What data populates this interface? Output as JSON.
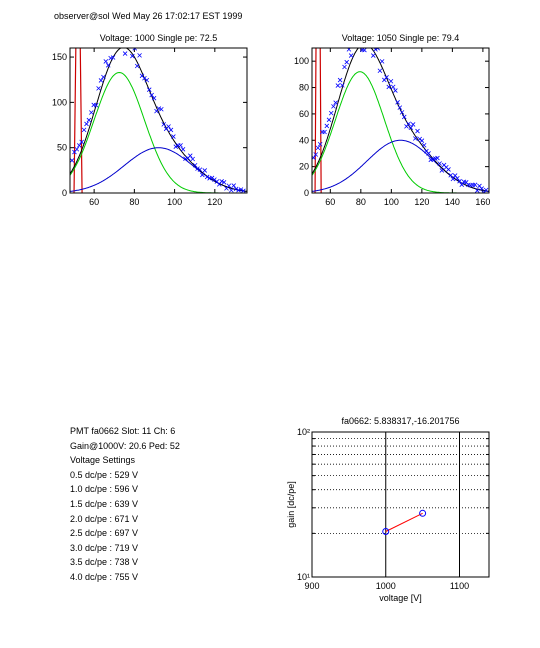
{
  "header": "observer@sol Wed May 26 17:02:17 EST 1999",
  "info_lines": [
    "PMT fa0662 Slot: 11 Ch: 6",
    "Gain@1000V: 20.6 Ped: 52",
    "Voltage Settings",
    "0.5 dc/pe : 529 V",
    "1.0 dc/pe : 596 V",
    "1.5 dc/pe : 639 V",
    "2.0 dc/pe : 671 V",
    "2.5 dc/pe : 697 V",
    "3.0 dc/pe : 719 V",
    "3.5 dc/pe : 738 V",
    "4.0 dc/pe : 755 V"
  ],
  "colors": {
    "data": "#0000ff",
    "total_fit": "#000000",
    "first_pe": "#00cc00",
    "second_pe": "#0000cc",
    "pedestal": "#cc0000",
    "gain_line": "#ff0000"
  },
  "chart_data": [
    {
      "type": "scatter",
      "title": "Voltage: 1000 Single pe: 72.5",
      "xlim": [
        48,
        136
      ],
      "ylim": [
        0,
        160
      ],
      "xticks": [
        60,
        80,
        100,
        120
      ],
      "yticks": [
        0,
        50,
        100,
        150
      ],
      "pedestal": {
        "x": 52,
        "peak": 250
      },
      "first_pe": {
        "mean": 72.5,
        "sigma": 12.5,
        "amp": 133
      },
      "second_pe": {
        "mean": 92,
        "sigma": 17,
        "amp": 50
      },
      "data": {
        "x_start": 49,
        "x_end": 135,
        "step": 1.2
      }
    },
    {
      "type": "scatter",
      "title": "Voltage: 1050 Single pe: 79.4",
      "xlim": [
        48,
        164
      ],
      "ylim": [
        0,
        110
      ],
      "xticks": [
        60,
        80,
        100,
        120,
        140,
        160
      ],
      "yticks": [
        0,
        20,
        40,
        60,
        80,
        100
      ],
      "pedestal": {
        "x": 52,
        "peak": 250
      },
      "first_pe": {
        "mean": 79.4,
        "sigma": 16,
        "amp": 92
      },
      "second_pe": {
        "mean": 106,
        "sigma": 22,
        "amp": 40
      },
      "data": {
        "x_start": 49,
        "x_end": 163,
        "step": 1.45
      }
    },
    {
      "type": "line",
      "title": "fa0662: 5.838317,-16.201756",
      "xlabel": "voltage [V]",
      "ylabel": "gain [dc/pe]",
      "xlim": [
        900,
        1140
      ],
      "xticks": [
        900,
        1000,
        1100
      ],
      "yscale": "log",
      "ylim": [
        10,
        100
      ],
      "ytick_labels": [
        "10¹",
        "10²"
      ],
      "grid": true,
      "vlines": [
        1000,
        1100
      ],
      "points": [
        {
          "x": 1000,
          "y": 20.6
        },
        {
          "x": 1050,
          "y": 27.5
        }
      ]
    }
  ]
}
